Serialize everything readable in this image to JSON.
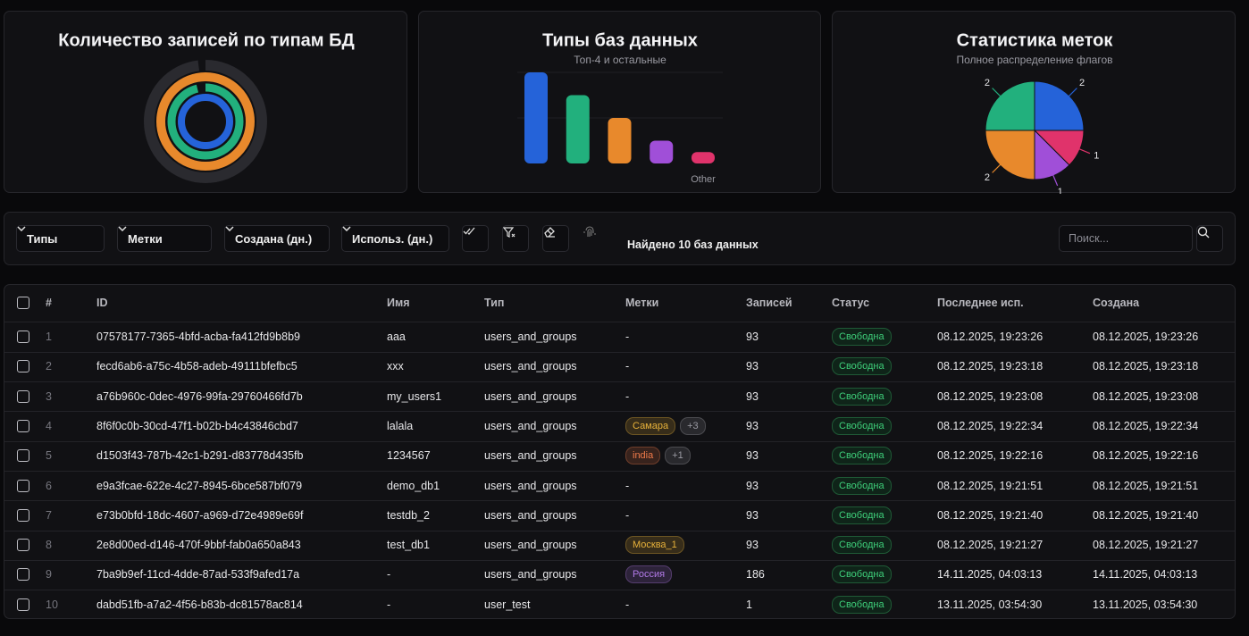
{
  "chart_data": [
    {
      "type": "radial",
      "title": "Количество записей по типам БД",
      "lim": [
        0,
        100
      ],
      "series": [
        {
          "color": "#2a2a2f",
          "value": 98
        },
        {
          "color": "#e8892c",
          "value": 100
        },
        {
          "color": "#22b07d",
          "value": 96
        },
        {
          "color": "#2563d9",
          "value": 100
        }
      ]
    },
    {
      "type": "bar",
      "title": "Типы баз данных",
      "subtitle": "Топ-4 и остальные",
      "categories": [
        null,
        null,
        null,
        null,
        "Other"
      ],
      "values": [
        4,
        3,
        2,
        1,
        0.5
      ],
      "colors": [
        "#2563d9",
        "#22b07d",
        "#e8892c",
        "#a04fd8",
        "#e0336b"
      ],
      "ylim": [
        0,
        4
      ]
    },
    {
      "type": "pie",
      "title": "Статистика меток",
      "subtitle": "Полное распределение флагов",
      "values": [
        2,
        1,
        1,
        2,
        2
      ],
      "colors": [
        "#2563d9",
        "#e0336b",
        "#a04fd8",
        "#e8892c",
        "#22b07d"
      ]
    }
  ],
  "toolbar": {
    "filters": [
      "Типы",
      "Метки",
      "Создана (дн.)",
      "Использ. (дн.)"
    ],
    "found": "Найдено 10 баз данных",
    "search_placeholder": "Поиск..."
  },
  "table": {
    "columns": [
      "#",
      "ID",
      "Имя",
      "Тип",
      "Метки",
      "Записей",
      "Статус",
      "Последнее исп.",
      "Создана"
    ],
    "rows": [
      {
        "index": 1,
        "id": "07578177-7365-4bfd-acba-fa412fd9b8b9",
        "name": "aaa",
        "type": "users_and_groups",
        "tags": "-",
        "records": 93,
        "status": "Свободна",
        "last_used": "08.12.2025, 19:23:26",
        "created": "08.12.2025, 19:23:26"
      },
      {
        "index": 2,
        "id": "fecd6ab6-a75c-4b58-adeb-49111bfefbc5",
        "name": "xxx",
        "type": "users_and_groups",
        "tags": "-",
        "records": 93,
        "status": "Свободна",
        "last_used": "08.12.2025, 19:23:18",
        "created": "08.12.2025, 19:23:18"
      },
      {
        "index": 3,
        "id": "a76b960c-0dec-4976-99fa-29760466fd7b",
        "name": "my_users1",
        "type": "users_and_groups",
        "tags": "-",
        "records": 93,
        "status": "Свободна",
        "last_used": "08.12.2025, 19:23:08",
        "created": "08.12.2025, 19:23:08"
      },
      {
        "index": 4,
        "id": "8f6f0c0b-30cd-47f1-b02b-b4c43846cbd7",
        "name": "lalala",
        "type": "users_and_groups",
        "tags": [
          {
            "label": "Самара",
            "color": "#e8b23a"
          },
          {
            "label": "+3",
            "color": "#9a9aa2"
          }
        ],
        "records": 93,
        "status": "Свободна",
        "last_used": "08.12.2025, 19:22:34",
        "created": "08.12.2025, 19:22:34"
      },
      {
        "index": 5,
        "id": "d1503f43-787b-42c1-b291-d83778d435fb",
        "name": "1234567",
        "type": "users_and_groups",
        "tags": [
          {
            "label": "india",
            "color": "#f07a4a"
          },
          {
            "label": "+1",
            "color": "#9a9aa2"
          }
        ],
        "records": 93,
        "status": "Свободна",
        "last_used": "08.12.2025, 19:22:16",
        "created": "08.12.2025, 19:22:16"
      },
      {
        "index": 6,
        "id": "e9a3fcae-622e-4c27-8945-6bce587bf079",
        "name": "demo_db1",
        "type": "users_and_groups",
        "tags": "-",
        "records": 93,
        "status": "Свободна",
        "last_used": "08.12.2025, 19:21:51",
        "created": "08.12.2025, 19:21:51"
      },
      {
        "index": 7,
        "id": "e73b0bfd-18dc-4607-a969-d72e4989e69f",
        "name": "testdb_2",
        "type": "users_and_groups",
        "tags": "-",
        "records": 93,
        "status": "Свободна",
        "last_used": "08.12.2025, 19:21:40",
        "created": "08.12.2025, 19:21:40"
      },
      {
        "index": 8,
        "id": "2e8d00ed-d146-470f-9bbf-fab0a650a843",
        "name": "test_db1",
        "type": "users_and_groups",
        "tags": [
          {
            "label": "Москва_1",
            "color": "#e8b23a"
          }
        ],
        "records": 93,
        "status": "Свободна",
        "last_used": "08.12.2025, 19:21:27",
        "created": "08.12.2025, 19:21:27"
      },
      {
        "index": 9,
        "id": "7ba9b9ef-11cd-4dde-87ad-533f9afed17a",
        "name": "-",
        "type": "users_and_groups",
        "tags": [
          {
            "label": "Россия",
            "color": "#b27ae8"
          }
        ],
        "records": 186,
        "status": "Свободна",
        "last_used": "14.11.2025, 04:03:13",
        "created": "14.11.2025, 04:03:13"
      },
      {
        "index": 10,
        "id": "dabd51fb-a7a2-4f56-b83b-dc81578ac814",
        "name": "-",
        "type": "user_test",
        "tags": "-",
        "records": 1,
        "status": "Свободна",
        "last_used": "13.11.2025, 03:54:30",
        "created": "13.11.2025, 03:54:30"
      }
    ]
  }
}
